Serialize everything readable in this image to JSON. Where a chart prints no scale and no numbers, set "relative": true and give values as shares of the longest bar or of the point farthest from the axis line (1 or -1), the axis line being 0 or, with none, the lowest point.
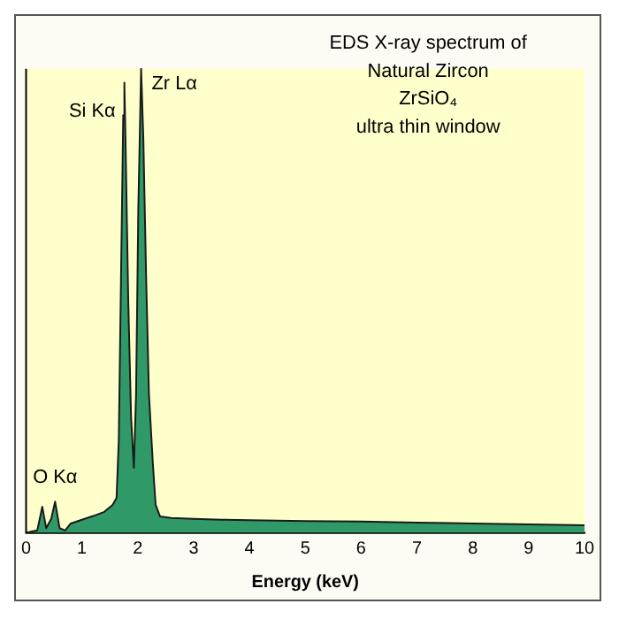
{
  "chart_data": {
    "type": "area",
    "xlabel": "Energy (keV)",
    "relative": true,
    "color": "#2f9a68",
    "xlim": [
      0,
      10
    ],
    "xticks": [
      0,
      1,
      2,
      3,
      4,
      5,
      6,
      7,
      8,
      9,
      10
    ],
    "grid": false,
    "legend": false,
    "marker": "none",
    "annotations": [
      "EDS X-ray spectrum of",
      "Natural Zircon",
      "ZrSiO₄",
      "ultra thin window",
      {
        "text": "Si Kα",
        "x": 1.76,
        "y": 0.97
      },
      {
        "text": "Zr Lα",
        "x": 2.06,
        "y": 1
      },
      {
        "text": "O Kα",
        "x": 0.52,
        "y": 0.067
      }
    ],
    "x": [
      0,
      0.2,
      0.29,
      0.36,
      0.45,
      0.52,
      0.6,
      0.7,
      0.8,
      1.0,
      1.2,
      1.4,
      1.55,
      1.62,
      1.66,
      1.7,
      1.74,
      1.76,
      1.78,
      1.83,
      1.88,
      1.93,
      1.97,
      2.01,
      2.06,
      2.1,
      2.15,
      2.2,
      2.27,
      2.32,
      2.4,
      2.6,
      3,
      3.5,
      4,
      5,
      6,
      7,
      8,
      9,
      10
    ],
    "values": [
      0,
      0.005,
      0.056,
      0.01,
      0.03,
      0.067,
      0.01,
      0.005,
      0.02,
      0.028,
      0.036,
      0.045,
      0.06,
      0.075,
      0.2,
      0.55,
      0.9,
      0.97,
      0.85,
      0.5,
      0.25,
      0.14,
      0.3,
      0.7,
      1,
      0.85,
      0.55,
      0.3,
      0.15,
      0.06,
      0.035,
      0.032,
      0.03,
      0.028,
      0.027,
      0.025,
      0.024,
      0.022,
      0.02,
      0.018,
      0.016
    ]
  }
}
